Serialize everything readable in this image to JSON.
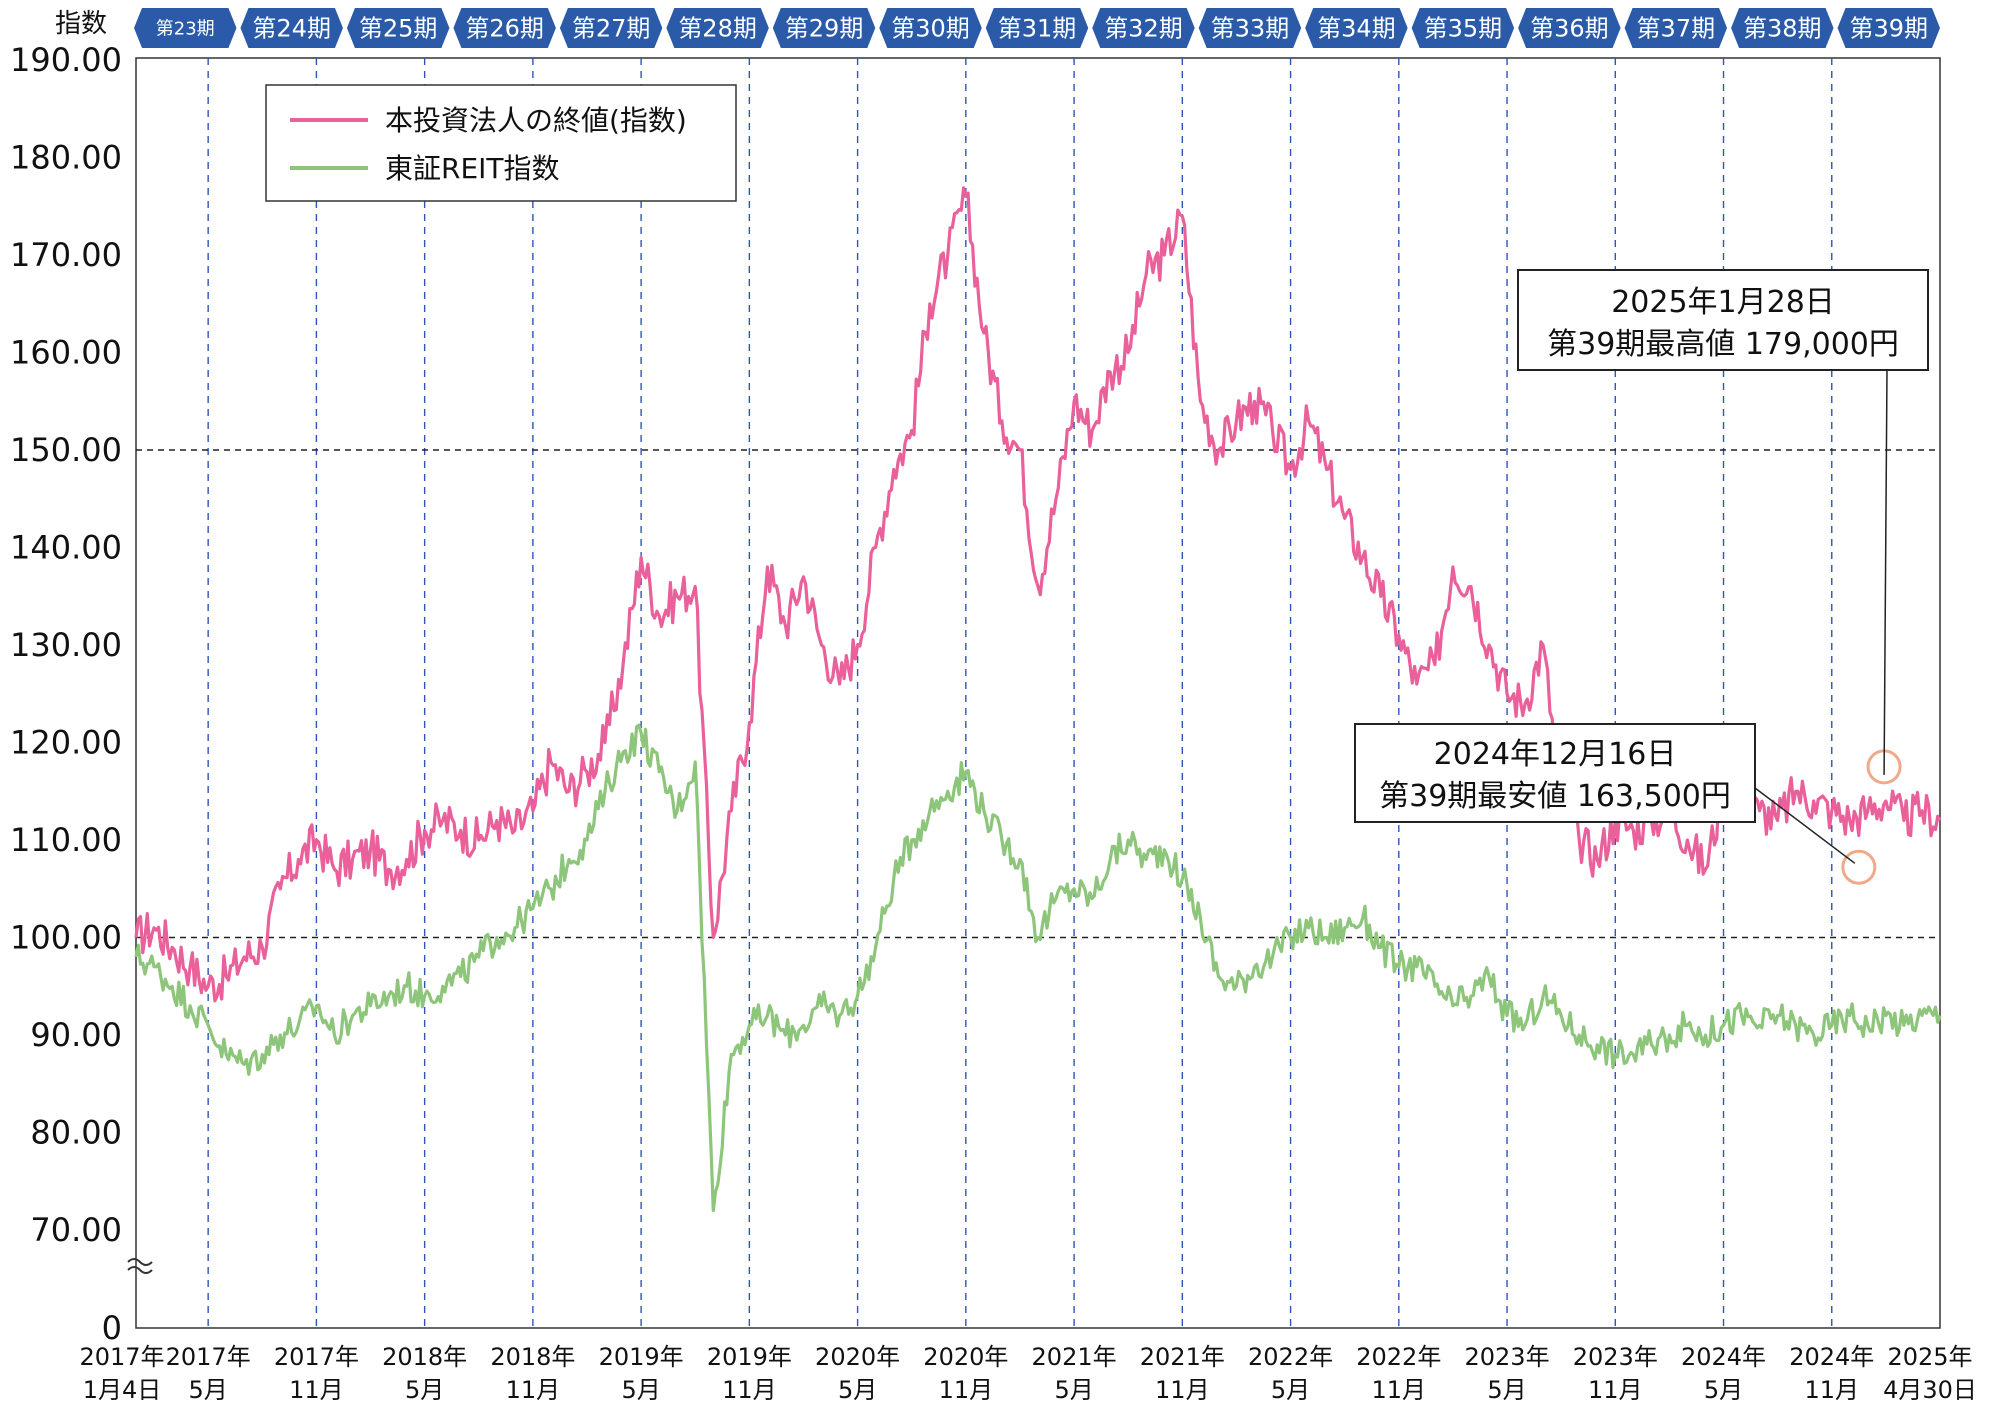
{
  "y_axis_title": "指数",
  "periods": [
    "第23期",
    "第24期",
    "第25期",
    "第26期",
    "第27期",
    "第28期",
    "第29期",
    "第30期",
    "第31期",
    "第32期",
    "第33期",
    "第34期",
    "第35期",
    "第36期",
    "第37期",
    "第38期",
    "第39期"
  ],
  "annotations": [
    {
      "line1": "2025年1月28日",
      "line2": "第39期最高値 179,000円"
    },
    {
      "line1": "2024年12月16日",
      "line2": "第39期最安値 163,500円"
    }
  ],
  "colors": {
    "fund": "#e9609b",
    "reit": "#8dc67a",
    "period_band": "#2b5ba8",
    "grid_dash": "#2d55b8",
    "annotation_circle": "#f0a98a"
  },
  "chart_data": {
    "type": "line",
    "y_tick_labels": [
      "190.00",
      "180.00",
      "170.00",
      "160.00",
      "150.00",
      "140.00",
      "130.00",
      "120.00",
      "110.00",
      "100.00",
      "90.00",
      "80.00",
      "70.00",
      "0"
    ],
    "ylim": [
      70,
      190
    ],
    "y_axis_break": true,
    "reference_lines": [
      150,
      100
    ],
    "x_tick_labels": [
      {
        "top": "2017年",
        "bottom": "1月4日"
      },
      {
        "top": "2017年",
        "bottom": "5月"
      },
      {
        "top": "2017年",
        "bottom": "11月"
      },
      {
        "top": "2018年",
        "bottom": "5月"
      },
      {
        "top": "2018年",
        "bottom": "11月"
      },
      {
        "top": "2019年",
        "bottom": "5月"
      },
      {
        "top": "2019年",
        "bottom": "11月"
      },
      {
        "top": "2020年",
        "bottom": "5月"
      },
      {
        "top": "2020年",
        "bottom": "11月"
      },
      {
        "top": "2021年",
        "bottom": "5月"
      },
      {
        "top": "2021年",
        "bottom": "11月"
      },
      {
        "top": "2022年",
        "bottom": "5月"
      },
      {
        "top": "2022年",
        "bottom": "11月"
      },
      {
        "top": "2023年",
        "bottom": "5月"
      },
      {
        "top": "2023年",
        "bottom": "11月"
      },
      {
        "top": "2024年",
        "bottom": "5月"
      },
      {
        "top": "2024年",
        "bottom": "11月"
      },
      {
        "top": "2025年",
        "bottom": "4月30日"
      }
    ],
    "legend_position": "top-left",
    "x_unit": "months since 2017-01",
    "series": [
      {
        "name": "本投資法人の終値(指数)",
        "color": "#e9609b",
        "x": [
          0,
          1,
          2,
          3,
          4,
          5,
          6,
          7,
          8,
          9,
          10,
          11,
          12,
          13,
          14,
          15,
          16,
          17,
          18,
          19,
          20,
          21,
          22,
          23,
          24,
          25,
          26,
          27,
          28,
          29,
          30,
          31,
          32,
          33,
          34,
          35,
          36,
          37,
          38,
          39,
          40,
          41,
          42,
          43,
          44,
          45,
          46,
          47,
          48,
          49,
          50,
          51,
          52,
          53,
          54,
          55,
          56,
          57,
          58,
          59,
          60,
          61,
          62,
          63,
          64,
          65,
          66,
          67,
          68,
          69,
          70,
          71,
          72,
          73,
          74,
          75,
          76,
          77,
          78,
          79,
          80,
          81,
          82,
          83,
          84,
          85,
          86,
          87,
          88,
          89,
          90,
          91,
          92,
          93,
          94,
          95,
          96,
          97,
          98,
          99,
          100
        ],
        "y": [
          100,
          101,
          99,
          97,
          95,
          96,
          98,
          99,
          105,
          108,
          110,
          107,
          108,
          109,
          107,
          108,
          111,
          112,
          111,
          110,
          112,
          111,
          113,
          118,
          115,
          117,
          120,
          128,
          139,
          133,
          135,
          136,
          100,
          113,
          122,
          138,
          132,
          137,
          130,
          126,
          130,
          140,
          148,
          152,
          165,
          170,
          176,
          162,
          153,
          150,
          136,
          145,
          155,
          152,
          158,
          160,
          168,
          170,
          174,
          155,
          150,
          153,
          155,
          152,
          148,
          153,
          148,
          143,
          139,
          135,
          131,
          126,
          128,
          138,
          136,
          130,
          125,
          124,
          130,
          114,
          110,
          108,
          112,
          111,
          112,
          113,
          110,
          107,
          115,
          114,
          113,
          112,
          115,
          114,
          113,
          112,
          113,
          114,
          112,
          113,
          112
        ],
        "highlights": [
          {
            "x": 96.9,
            "y": 117.5
          },
          {
            "x": 95.5,
            "y": 107.2
          }
        ]
      },
      {
        "name": "東証REIT指数",
        "color": "#8dc67a",
        "x": [
          0,
          1,
          2,
          3,
          4,
          5,
          6,
          7,
          8,
          9,
          10,
          11,
          12,
          13,
          14,
          15,
          16,
          17,
          18,
          19,
          20,
          21,
          22,
          23,
          24,
          25,
          26,
          27,
          28,
          29,
          30,
          31,
          32,
          33,
          34,
          35,
          36,
          37,
          38,
          39,
          40,
          41,
          42,
          43,
          44,
          45,
          46,
          47,
          48,
          49,
          50,
          51,
          52,
          53,
          54,
          55,
          56,
          57,
          58,
          59,
          60,
          61,
          62,
          63,
          64,
          65,
          66,
          67,
          68,
          69,
          70,
          71,
          72,
          73,
          74,
          75,
          76,
          77,
          78,
          79,
          80,
          81,
          82,
          83,
          84,
          85,
          86,
          87,
          88,
          89,
          90,
          91,
          92,
          93,
          94,
          95,
          96,
          97,
          98,
          99,
          100
        ],
        "y": [
          98,
          97,
          95,
          93,
          91,
          88,
          87,
          88,
          90,
          91,
          93,
          90,
          92,
          93,
          94,
          95,
          94,
          95,
          96,
          98,
          100,
          101,
          103,
          105,
          108,
          110,
          115,
          119,
          121,
          117,
          113,
          118,
          72,
          88,
          91,
          92,
          90,
          91,
          93,
          92,
          94,
          99,
          106,
          110,
          113,
          115,
          117,
          113,
          110,
          108,
          100,
          104,
          105,
          104,
          108,
          110,
          108,
          109,
          106,
          102,
          96,
          95,
          97,
          98,
          100,
          101,
          100,
          101,
          102,
          99,
          97,
          97,
          95,
          93,
          94,
          96,
          92,
          91,
          94,
          92,
          90,
          89,
          88,
          88,
          89,
          90,
          91,
          90,
          91,
          92,
          91,
          92,
          91,
          90,
          91,
          92,
          91,
          92,
          91,
          92,
          92
        ]
      }
    ]
  }
}
